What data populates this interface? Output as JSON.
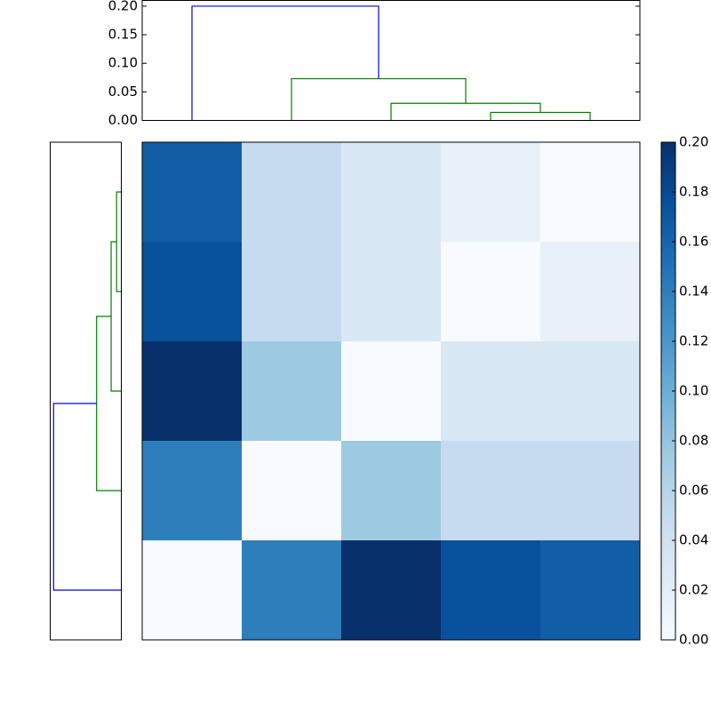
{
  "chart_data": [
    {
      "type": "dendrogram",
      "orientation": "top",
      "links": [
        {
          "position": [
            35,
            35,
            45,
            45
          ],
          "height": [
            0,
            0.014,
            0.014,
            0
          ],
          "color": "#008000"
        },
        {
          "position": [
            25,
            25,
            40,
            40
          ],
          "height": [
            0,
            0.03,
            0.03,
            0.014
          ],
          "color": "#008000"
        },
        {
          "position": [
            15,
            15,
            32.5,
            32.5
          ],
          "height": [
            0,
            0.073,
            0.073,
            0.03
          ],
          "color": "#008000"
        },
        {
          "position": [
            5,
            5,
            23.75,
            23.75
          ],
          "height": [
            0,
            0.2,
            0.2,
            0.073
          ],
          "color": "#0000ff"
        }
      ],
      "poslim": [
        0,
        50
      ],
      "heightlim": [
        0,
        0.21
      ],
      "heightticks": [
        {
          "value": 0,
          "label": "0.00"
        },
        {
          "value": 0.05,
          "label": "0.05"
        },
        {
          "value": 0.1,
          "label": "0.10"
        },
        {
          "value": 0.15,
          "label": "0.15"
        },
        {
          "value": 0.2,
          "label": "0.20"
        }
      ]
    },
    {
      "type": "dendrogram",
      "orientation": "left",
      "links": [
        {
          "position": [
            35,
            35,
            45,
            45
          ],
          "height": [
            0,
            0.014,
            0.014,
            0
          ],
          "color": "#008000"
        },
        {
          "position": [
            25,
            25,
            40,
            40
          ],
          "height": [
            0,
            0.03,
            0.03,
            0.014
          ],
          "color": "#008000"
        },
        {
          "position": [
            15,
            15,
            32.5,
            32.5
          ],
          "height": [
            0,
            0.073,
            0.073,
            0.03
          ],
          "color": "#008000"
        },
        {
          "position": [
            5,
            5,
            23.75,
            23.75
          ],
          "height": [
            0,
            0.2,
            0.2,
            0.073
          ],
          "color": "#0000ff"
        }
      ],
      "poslim": [
        0,
        50
      ],
      "heightlim": [
        0,
        0.21
      ]
    },
    {
      "type": "heatmap",
      "values": [
        [
          0.165,
          0.05,
          0.03,
          0.015,
          0
        ],
        [
          0.175,
          0.05,
          0.03,
          0,
          0.015
        ],
        [
          0.2,
          0.075,
          0,
          0.03,
          0.03
        ],
        [
          0.14,
          0,
          0.075,
          0.05,
          0.05
        ],
        [
          0,
          0.14,
          0.2,
          0.175,
          0.165
        ]
      ],
      "colormap": [
        "#f7fbff",
        "#deebf7",
        "#c6dbef",
        "#9ecae1",
        "#6baed6",
        "#4292c6",
        "#2171b5",
        "#08519c",
        "#08306b"
      ],
      "clim": [
        0,
        0.2
      ],
      "colorbar_ticks": [
        {
          "value": 0,
          "label": "0.00"
        },
        {
          "value": 0.02,
          "label": "0.02"
        },
        {
          "value": 0.04,
          "label": "0.04"
        },
        {
          "value": 0.06,
          "label": "0.06"
        },
        {
          "value": 0.08,
          "label": "0.08"
        },
        {
          "value": 0.1,
          "label": "0.10"
        },
        {
          "value": 0.12,
          "label": "0.12"
        },
        {
          "value": 0.14,
          "label": "0.14"
        },
        {
          "value": 0.16,
          "label": "0.16"
        },
        {
          "value": 0.18,
          "label": "0.18"
        },
        {
          "value": 0.2,
          "label": "0.20"
        }
      ]
    }
  ]
}
